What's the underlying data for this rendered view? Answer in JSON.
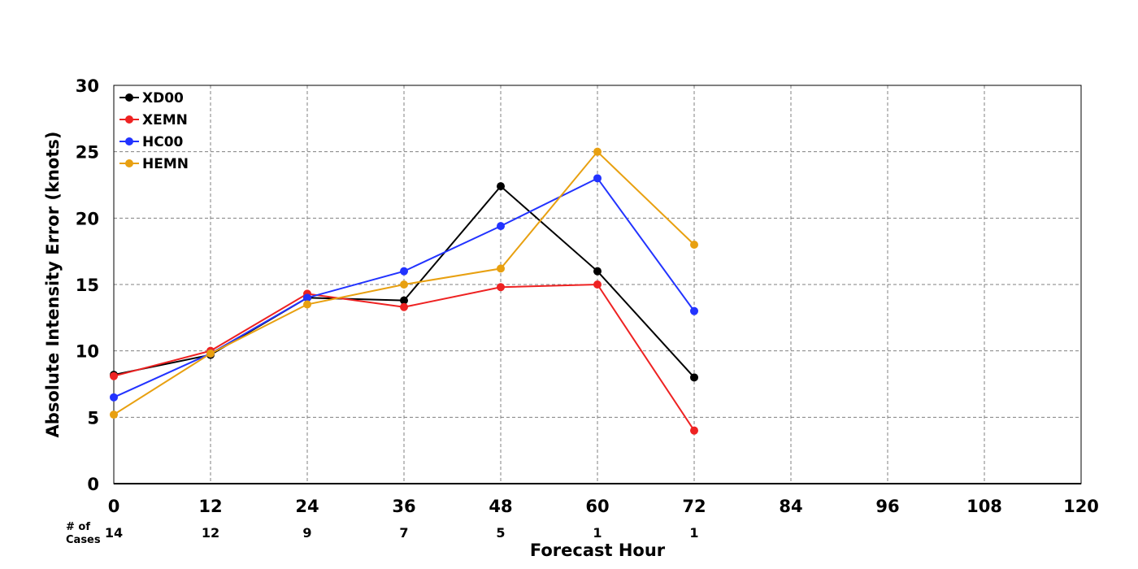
{
  "chart_data": {
    "type": "line",
    "xlabel": "Forecast Hour",
    "ylabel": "Absolute Intensity Error (knots)",
    "xlim": [
      0,
      120
    ],
    "ylim": [
      0,
      30
    ],
    "x_ticks": [
      0,
      12,
      24,
      36,
      48,
      60,
      72,
      84,
      96,
      108,
      120
    ],
    "y_ticks": [
      0,
      5,
      10,
      15,
      20,
      25,
      30
    ],
    "grid": true,
    "legend_position": "top-left",
    "cases_label": [
      "# of",
      "Cases"
    ],
    "cases": [
      {
        "x": 0,
        "n": "14"
      },
      {
        "x": 12,
        "n": "12"
      },
      {
        "x": 24,
        "n": "9"
      },
      {
        "x": 36,
        "n": "7"
      },
      {
        "x": 48,
        "n": "5"
      },
      {
        "x": 60,
        "n": "1"
      },
      {
        "x": 72,
        "n": "1"
      }
    ],
    "x": [
      0,
      12,
      24,
      36,
      48,
      60,
      72
    ],
    "series": [
      {
        "name": "XD00",
        "color": "#000000",
        "values": [
          8.2,
          9.7,
          14.0,
          13.8,
          22.4,
          16.0,
          8.0
        ]
      },
      {
        "name": "XEMN",
        "color": "#ee2222",
        "values": [
          8.1,
          10.0,
          14.3,
          13.3,
          14.8,
          15.0,
          4.0
        ]
      },
      {
        "name": "HC00",
        "color": "#2233ff",
        "values": [
          6.5,
          9.8,
          14.0,
          16.0,
          19.4,
          23.0,
          13.0
        ]
      },
      {
        "name": "HEMN",
        "color": "#e8a010",
        "values": [
          5.2,
          9.8,
          13.5,
          15.0,
          16.2,
          25.0,
          18.0
        ]
      }
    ]
  }
}
